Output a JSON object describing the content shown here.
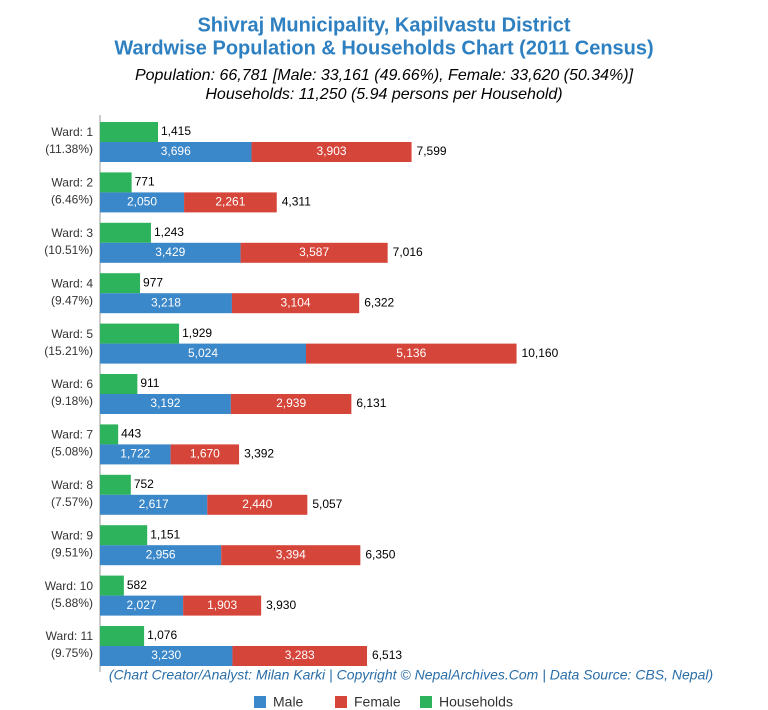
{
  "chart_data": {
    "type": "bar",
    "title": [
      "Shivraj Municipality, Kapilvastu District",
      "Wardwise Population & Households Chart (2011 Census)"
    ],
    "subtitle": [
      "Population: 66,781 [Male: 33,161 (49.66%), Female: 33,620 (50.34%)]",
      "Households: 11,250 (5.94 persons per Household)"
    ],
    "credit": "(Chart Creator/Analyst: Milan Karki | Copyright © NepalArchives.Com | Data Source: CBS, Nepal)",
    "categories": [
      "Ward: 1",
      "Ward: 2",
      "Ward: 3",
      "Ward: 4",
      "Ward: 5",
      "Ward: 6",
      "Ward: 7",
      "Ward: 8",
      "Ward: 9",
      "Ward: 10",
      "Ward: 11"
    ],
    "category_notes": [
      "(11.38%)",
      "(6.46%)",
      "(10.51%)",
      "(9.47%)",
      "(15.21%)",
      "(9.18%)",
      "(5.08%)",
      "(7.57%)",
      "(9.51%)",
      "(5.88%)",
      "(9.75%)"
    ],
    "xlim": [
      0,
      12000
    ],
    "series": [
      {
        "name": "Male",
        "color": "#3a87c9",
        "values": [
          3696,
          2050,
          3429,
          3218,
          5024,
          3192,
          1722,
          2617,
          2956,
          2027,
          3230
        ],
        "value_labels": [
          "3,696",
          "2,050",
          "3,429",
          "3,218",
          "5,024",
          "3,192",
          "1,722",
          "2,617",
          "2,956",
          "2,027",
          "3,230"
        ]
      },
      {
        "name": "Female",
        "color": "#d5453a",
        "values": [
          3903,
          2261,
          3587,
          3104,
          5136,
          2939,
          1670,
          2440,
          3394,
          1903,
          3283
        ],
        "value_labels": [
          "3,903",
          "2,261",
          "3,587",
          "3,104",
          "5,136",
          "2,939",
          "1,670",
          "2,440",
          "3,394",
          "1,903",
          "3,283"
        ]
      },
      {
        "name": "Households",
        "color": "#2db35b",
        "values": [
          1415,
          771,
          1243,
          977,
          1929,
          911,
          443,
          752,
          1151,
          582,
          1076
        ],
        "value_labels": [
          "1,415",
          "771",
          "1,243",
          "977",
          "1,929",
          "911",
          "443",
          "752",
          "1,151",
          "582",
          "1,076"
        ]
      }
    ],
    "totals": {
      "values": [
        7599,
        4311,
        7016,
        6322,
        10160,
        6131,
        3392,
        5057,
        6350,
        3930,
        6513
      ],
      "value_labels": [
        "7,599",
        "4,311",
        "7,016",
        "6,322",
        "10,160",
        "6,131",
        "3,392",
        "5,057",
        "6,350",
        "3,930",
        "6,513"
      ]
    }
  }
}
